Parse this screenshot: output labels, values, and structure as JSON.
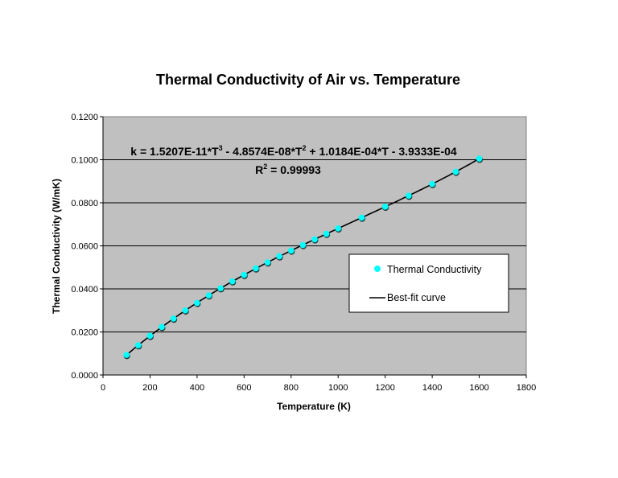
{
  "chart_data": {
    "type": "scatter",
    "title": "Thermal Conductivity of Air vs. Temperature",
    "xlabel": "Temperature (K)",
    "ylabel": "Thermal Conductivity (W/mK)",
    "xlim": [
      0,
      1800
    ],
    "ylim": [
      0,
      0.12
    ],
    "xticks": [
      "0",
      "200",
      "400",
      "600",
      "800",
      "1000",
      "1200",
      "1400",
      "1600",
      "1800"
    ],
    "yticks": [
      "0.0000",
      "0.0200",
      "0.0400",
      "0.0600",
      "0.0800",
      "0.1000",
      "0.1200"
    ],
    "grid": "horizontal",
    "legend_position": "center-right",
    "series": [
      {
        "name": "Thermal Conductivity",
        "type": "scatter",
        "color": "#00FFFF",
        "x": [
          100,
          150,
          200,
          250,
          300,
          350,
          400,
          450,
          500,
          550,
          600,
          650,
          700,
          750,
          800,
          850,
          900,
          950,
          1000,
          1100,
          1200,
          1300,
          1400,
          1500,
          1600
        ],
        "y": [
          0.0093,
          0.0138,
          0.0182,
          0.0223,
          0.0262,
          0.03,
          0.0335,
          0.037,
          0.0403,
          0.0435,
          0.0465,
          0.0495,
          0.0523,
          0.0551,
          0.0578,
          0.0604,
          0.063,
          0.0656,
          0.0681,
          0.0731,
          0.0782,
          0.0833,
          0.0887,
          0.0944,
          0.1005
        ]
      },
      {
        "name": "Best-fit curve",
        "type": "line",
        "color": "#000000",
        "coefficients": [
          1.5207e-11,
          -4.8574e-08,
          0.00010184,
          -0.00039333
        ],
        "xrange": [
          100,
          1600
        ]
      }
    ],
    "annotations": {
      "equation_parts": [
        "k = 1.5207E-11*T",
        "3",
        " - 4.8574E-08*T",
        "2",
        " + 1.0184E-04*T - 3.9333E-04"
      ],
      "r2_parts": [
        "R",
        "2",
        " = 0.99993"
      ]
    }
  }
}
